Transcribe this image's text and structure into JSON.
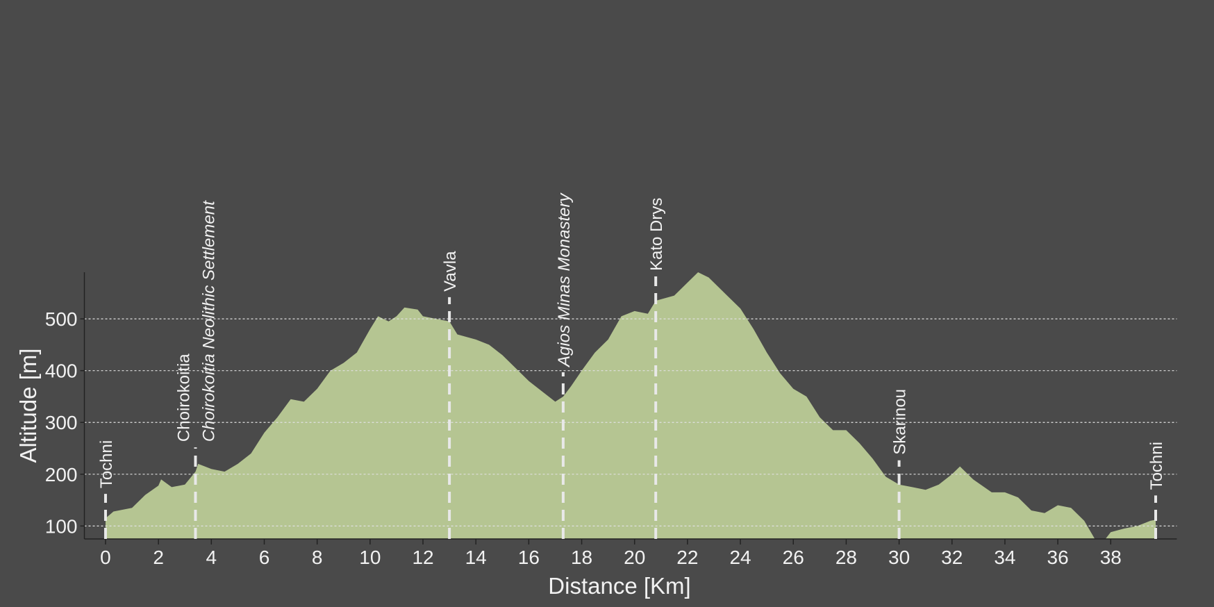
{
  "chart_data": {
    "type": "area",
    "xlabel": "Distance [Km]",
    "ylabel": "Altitude [m]",
    "x": [
      0,
      0.3,
      1,
      1.5,
      2,
      2.1,
      2.5,
      3,
      3.4,
      3.5,
      4,
      4.5,
      5,
      5.5,
      6,
      6.5,
      7,
      7.5,
      8,
      8.5,
      9,
      9.5,
      10,
      10.3,
      10.7,
      11,
      11.3,
      11.8,
      12,
      12.5,
      13,
      13.3,
      14,
      14.5,
      15,
      16,
      16.5,
      17,
      17.3,
      17.6,
      18,
      18.5,
      19,
      19.5,
      20,
      20.5,
      20.8,
      21.5,
      22,
      22.4,
      22.8,
      23.5,
      24,
      24.5,
      25,
      25.5,
      26,
      26.5,
      27,
      27.5,
      28,
      28.5,
      29,
      29.5,
      30,
      30.5,
      31,
      31.5,
      32,
      32.3,
      32.8,
      33.5,
      34,
      34.5,
      35,
      35.5,
      36,
      36.5,
      37,
      37.4,
      37.8,
      38,
      38.5,
      39,
      39.5,
      39.7
    ],
    "values": [
      115,
      128,
      135,
      160,
      178,
      190,
      175,
      180,
      205,
      220,
      210,
      205,
      220,
      240,
      280,
      310,
      345,
      340,
      365,
      400,
      415,
      435,
      480,
      505,
      495,
      505,
      522,
      518,
      505,
      500,
      495,
      470,
      460,
      450,
      430,
      380,
      360,
      340,
      350,
      370,
      400,
      435,
      460,
      505,
      515,
      510,
      535,
      545,
      570,
      590,
      580,
      545,
      520,
      480,
      435,
      395,
      365,
      350,
      310,
      285,
      285,
      260,
      230,
      195,
      180,
      175,
      170,
      180,
      200,
      215,
      190,
      165,
      165,
      155,
      130,
      125,
      140,
      135,
      110,
      75,
      75,
      88,
      95,
      100,
      110,
      112
    ],
    "color": "#b5c592",
    "xlim": [
      -0.8,
      40.5
    ],
    "ylim": [
      75,
      590
    ],
    "xticks": [
      0,
      2,
      4,
      6,
      8,
      10,
      12,
      14,
      16,
      18,
      20,
      22,
      24,
      26,
      28,
      30,
      32,
      34,
      36,
      38
    ],
    "yticks": [
      100,
      200,
      300,
      400,
      500
    ],
    "grid": true,
    "markers": [
      {
        "name": "Tochni",
        "x": 0
      },
      {
        "name": "Choirokoitia",
        "x": 3.4
      },
      {
        "name": "Choirokoitia Neolithic Settlement",
        "x": 3.4,
        "italic": true
      },
      {
        "name": "Vavla",
        "x": 13
      },
      {
        "name": "Agios Minas Monastery",
        "x": 17.3,
        "italic": true
      },
      {
        "name": "Kato Drys",
        "x": 20.8
      },
      {
        "name": "Skarinou",
        "x": 30
      },
      {
        "name": "Tochni",
        "x": 39.7
      }
    ]
  }
}
